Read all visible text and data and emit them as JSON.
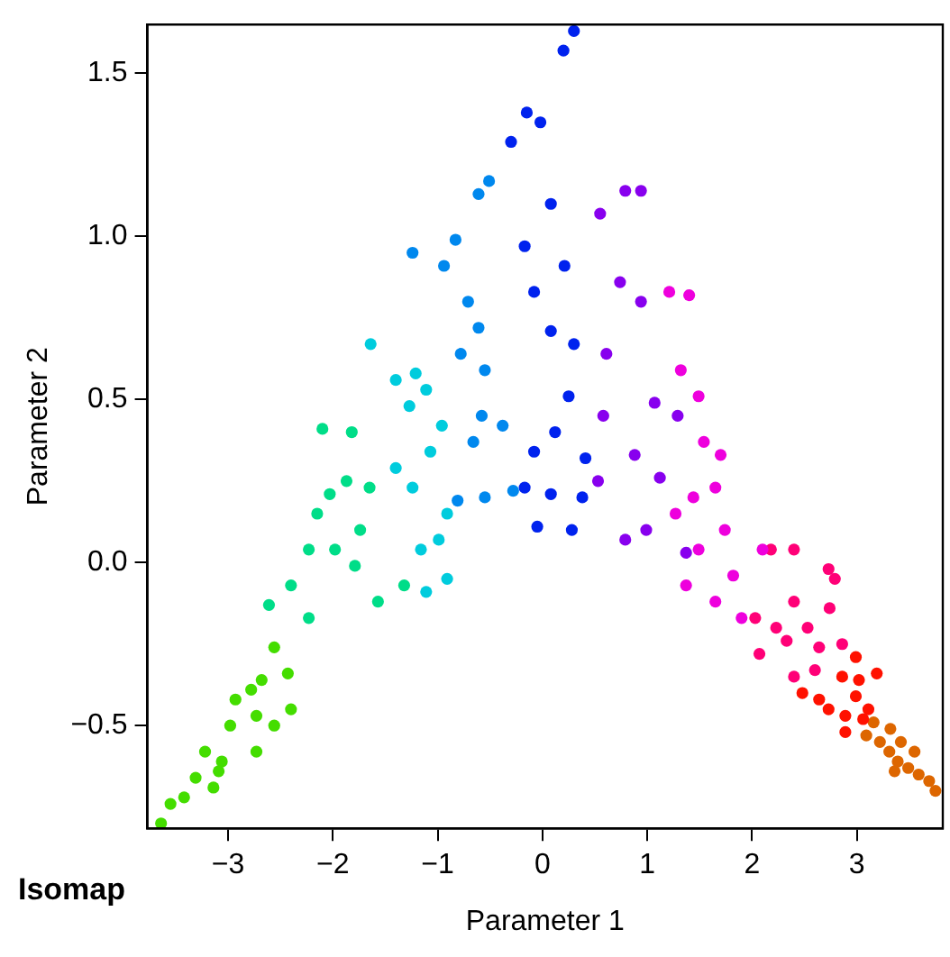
{
  "chart_data": {
    "type": "scatter",
    "title": "Isomap",
    "xlabel": "Parameter 1",
    "ylabel": "Parameter 2",
    "xlim": [
      -3.77,
      3.82
    ],
    "ylim": [
      -0.815,
      1.65
    ],
    "xticks": [
      {
        "value": -3,
        "label": "−3"
      },
      {
        "value": -2,
        "label": "−2"
      },
      {
        "value": -1,
        "label": "−1"
      },
      0,
      1,
      2,
      3
    ],
    "yticks": [
      {
        "value": -0.5,
        "label": "−0.5"
      },
      {
        "value": 0,
        "label": "0.0"
      },
      {
        "value": 0.5,
        "label": "0.5"
      },
      {
        "value": 1,
        "label": "1.0"
      },
      {
        "value": 1.5,
        "label": "1.5"
      }
    ],
    "grid": false,
    "legend": false,
    "marker": "circle",
    "series": [
      {
        "color": "#44dd00",
        "x": [
          -3.64,
          -3.55,
          -3.42,
          -3.31,
          -3.22,
          -3.06,
          -2.98,
          -2.93,
          -2.73,
          -2.68,
          -2.56,
          -2.43,
          -2.4,
          -2.73,
          -3.14,
          -2.56,
          -2.78,
          -3.09
        ],
        "values": [
          -0.8,
          -0.74,
          -0.72,
          -0.66,
          -0.58,
          -0.61,
          -0.5,
          -0.42,
          -0.47,
          -0.36,
          -0.26,
          -0.34,
          -0.45,
          -0.58,
          -0.69,
          -0.5,
          -0.39,
          -0.64
        ]
      },
      {
        "color": "#00dd88",
        "x": [
          -2.61,
          -2.4,
          -2.23,
          -2.15,
          -2.03,
          -2.1,
          -1.82,
          -1.98,
          -1.74,
          -1.65,
          -1.79,
          -1.57,
          -1.32,
          -2.23,
          -1.87
        ],
        "values": [
          -0.13,
          -0.07,
          0.04,
          0.15,
          0.21,
          0.41,
          0.4,
          0.04,
          0.1,
          0.23,
          -0.01,
          -0.12,
          -0.07,
          -0.17,
          0.25
        ]
      },
      {
        "color": "#00ccdd",
        "x": [
          -1.4,
          -1.24,
          -1.07,
          -1.11,
          -0.91,
          -1.16,
          -1.27,
          -1.11,
          -0.96,
          -0.91,
          -0.99,
          -1.64,
          -1.4,
          -1.21
        ],
        "values": [
          0.29,
          0.23,
          0.34,
          -0.09,
          -0.05,
          0.04,
          0.48,
          0.53,
          0.42,
          0.15,
          0.07,
          0.67,
          0.56,
          0.58
        ]
      },
      {
        "color": "#0088ee",
        "x": [
          -1.24,
          -0.94,
          -0.83,
          -0.61,
          -0.51,
          -0.78,
          -0.71,
          -0.61,
          -0.55,
          -0.66,
          -0.55,
          -0.28,
          -0.58,
          -0.38,
          -0.81
        ],
        "values": [
          0.95,
          0.91,
          0.99,
          1.13,
          1.17,
          0.64,
          0.8,
          0.72,
          0.59,
          0.37,
          0.2,
          0.22,
          0.45,
          0.42,
          0.19
        ]
      },
      {
        "color": "#0022ee",
        "x": [
          -0.3,
          -0.15,
          -0.02,
          0.2,
          0.3,
          -0.17,
          0.08,
          -0.08,
          0.08,
          -0.08,
          -0.17,
          0.12,
          -0.05,
          0.08,
          0.28,
          0.38,
          0.41,
          0.25,
          0.3,
          0.21
        ],
        "values": [
          1.29,
          1.38,
          1.35,
          1.57,
          1.63,
          0.97,
          1.1,
          0.83,
          0.71,
          0.34,
          0.23,
          0.4,
          0.11,
          0.21,
          0.1,
          0.2,
          0.32,
          0.51,
          0.67,
          0.91
        ]
      },
      {
        "color": "#8800ee",
        "x": [
          0.79,
          0.94,
          0.55,
          0.74,
          0.94,
          0.61,
          0.58,
          0.53,
          0.79,
          0.99,
          0.88,
          1.12,
          1.37,
          1.29,
          1.07
        ],
        "values": [
          1.14,
          1.14,
          1.07,
          0.86,
          0.8,
          0.64,
          0.45,
          0.25,
          0.07,
          0.1,
          0.33,
          0.26,
          0.03,
          0.45,
          0.49
        ]
      },
      {
        "color": "#ee00dd",
        "x": [
          1.21,
          1.4,
          1.32,
          1.49,
          1.54,
          1.65,
          1.74,
          1.82,
          1.27,
          1.49,
          1.37,
          1.65,
          1.9,
          1.7,
          1.44,
          2.1
        ],
        "values": [
          0.83,
          0.82,
          0.59,
          0.51,
          0.37,
          0.23,
          0.1,
          -0.04,
          0.15,
          0.04,
          -0.07,
          -0.12,
          -0.17,
          0.33,
          0.2,
          0.04
        ]
      },
      {
        "color": "#ff0077",
        "x": [
          2.18,
          2.4,
          2.73,
          2.79,
          2.03,
          2.23,
          2.4,
          2.53,
          2.64,
          2.07,
          2.4,
          2.6,
          2.74,
          2.86,
          2.33
        ],
        "values": [
          0.04,
          0.04,
          -0.02,
          -0.05,
          -0.17,
          -0.2,
          -0.12,
          -0.2,
          -0.26,
          -0.28,
          -0.35,
          -0.33,
          -0.14,
          -0.25,
          -0.24
        ]
      },
      {
        "color": "#ff1100",
        "x": [
          2.48,
          2.64,
          2.73,
          2.89,
          2.99,
          3.11,
          3.02,
          2.86,
          2.99,
          3.19,
          2.89,
          3.06
        ],
        "values": [
          -0.4,
          -0.42,
          -0.45,
          -0.47,
          -0.41,
          -0.45,
          -0.36,
          -0.35,
          -0.29,
          -0.34,
          -0.52,
          -0.48
        ]
      },
      {
        "color": "#dd6600",
        "x": [
          3.09,
          3.22,
          3.31,
          3.39,
          3.49,
          3.59,
          3.69,
          3.75,
          3.16,
          3.32,
          3.42,
          3.55,
          3.36
        ],
        "values": [
          -0.53,
          -0.55,
          -0.58,
          -0.61,
          -0.63,
          -0.65,
          -0.67,
          -0.7,
          -0.49,
          -0.51,
          -0.55,
          -0.58,
          -0.64
        ]
      }
    ]
  }
}
